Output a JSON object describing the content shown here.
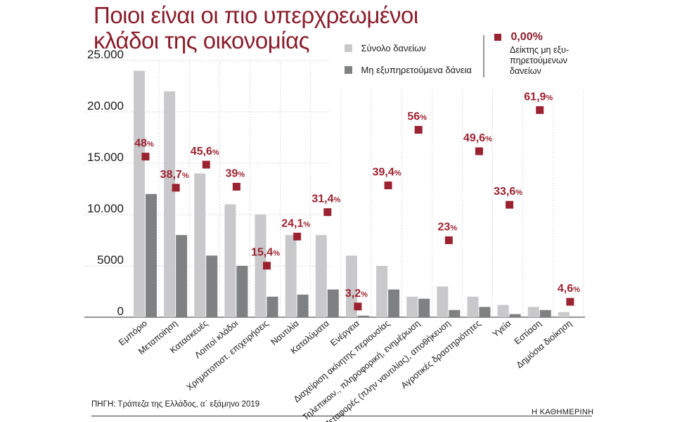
{
  "title_line1": "Ποιοι είναι οι πιο υπερχρεωμένοι",
  "title_line2": "κλάδοι της οικονομίας",
  "legend": {
    "total_label": "Σύνολο δανείων",
    "npl_label": "Μη εξυπηρετούμενα δάνεια",
    "rate_value": "0,00%",
    "rate_line1": "Δείκτης μη εξυ-",
    "rate_line2": "πηρετούμενων",
    "rate_line3": "δανείων"
  },
  "source": "ΠΗΓΗ: Τράπεζα της Ελλάδος, α΄ εξάμηνο 2019",
  "brand": "Η ΚΑΘΗΜΕΡΙΝΗ",
  "colors": {
    "title": "#8b1e2c",
    "total": "#c9c9cb",
    "npl": "#7f8082",
    "marker": "#9b2230",
    "grid": "#b9b9b9"
  },
  "chart_data": {
    "type": "bar",
    "categories": [
      "Εμπόριο",
      "Μεταποίηση",
      "Κατασκευές",
      "Λοιποί κλάδοι",
      "Χρηματοπιστ. επιχειρήσεις",
      "Ναυτιλία",
      "Καταλύματα",
      "Ενέργεια",
      "Διαχείριση ακίνητης περιουσίας",
      "Τηλεπικοιν., πληροφορική, ενημέρωση",
      "Μεταφορές (πλην ναυτιλίας), αποθήκευση",
      "Αγροτικές δραστηριότητες",
      "Υγεία",
      "Εστίαση",
      "Δημόσια διοίκηση"
    ],
    "series": [
      {
        "name": "Σύνολο δανείων",
        "values": [
          24000,
          22000,
          14000,
          11000,
          10000,
          8000,
          8000,
          6000,
          5000,
          2000,
          3000,
          2000,
          1200,
          1000,
          500
        ]
      },
      {
        "name": "Μη εξυπηρετούμενα δάνεια",
        "values": [
          12000,
          8000,
          6000,
          5000,
          2000,
          2200,
          2700,
          150,
          2700,
          1800,
          700,
          1000,
          300,
          700,
          0
        ]
      }
    ],
    "rates": [
      48,
      38.7,
      45.6,
      39,
      15.4,
      24.1,
      31.4,
      3.2,
      39.4,
      56,
      23,
      49.6,
      33.6,
      61.9,
      4.6
    ],
    "rate_labels": [
      "48%",
      "38,7%",
      "45,6%",
      "39%",
      "15,4%",
      "24,1%",
      "31,4%",
      "3,2%",
      "39,4%",
      "56%",
      "23%",
      "49,6%",
      "33,6%",
      "61,9%",
      "4,6%"
    ],
    "rate_range": [
      0,
      70
    ],
    "ylim": [
      0,
      25000
    ],
    "yticks": [
      0,
      5000,
      10000,
      15000,
      20000,
      25000
    ],
    "ytick_labels": [
      "0",
      "5000",
      "10.000",
      "15.000",
      "20.000",
      "25.000"
    ],
    "grid": true
  }
}
